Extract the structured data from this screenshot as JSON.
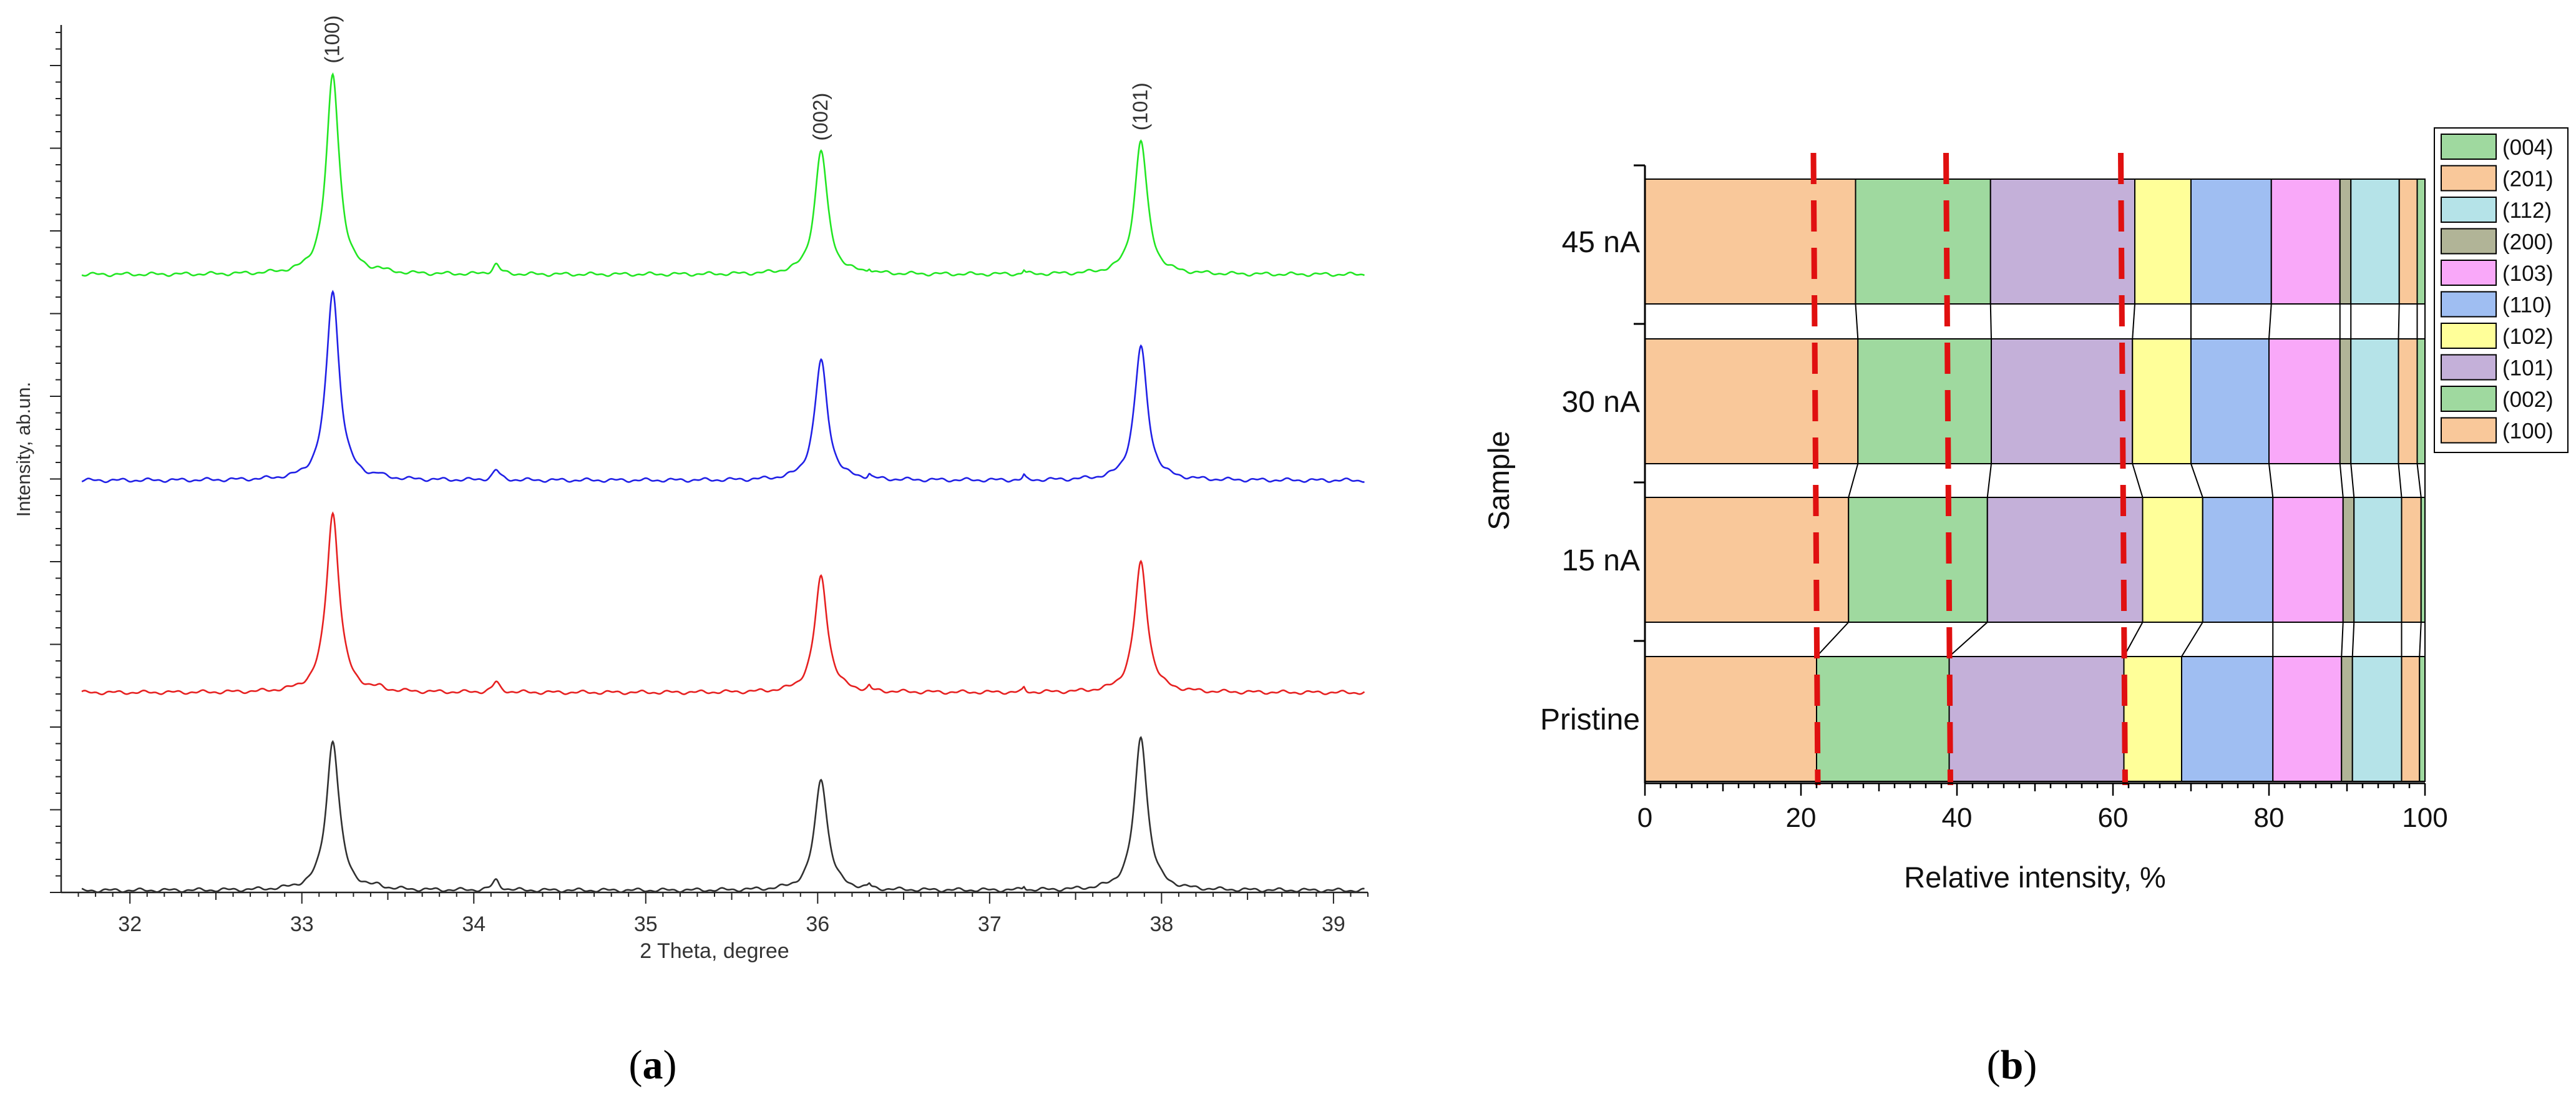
{
  "chart_data": [
    {
      "type": "line",
      "panel": "(a)",
      "xlabel": "2 Theta, degree",
      "ylabel": "Intensity, ab.un.",
      "xlim": [
        31.6,
        39.2
      ],
      "xticks": [
        32,
        33,
        34,
        35,
        36,
        37,
        38,
        39
      ],
      "peak_labels": [
        {
          "label": "(100)",
          "x": 33.18
        },
        {
          "label": "(002)",
          "x": 36.02
        },
        {
          "label": "(101)",
          "x": 37.88
        }
      ],
      "series": [
        {
          "name": "45 nA",
          "color": "#22e622",
          "offset": 3,
          "heights": [
            1.0,
            0.62,
            0.67
          ]
        },
        {
          "name": "30 nA",
          "color": "#2020e6",
          "offset": 2,
          "heights": [
            0.95,
            0.6,
            0.67
          ]
        },
        {
          "name": "15 nA",
          "color": "#e62020",
          "offset": 1,
          "heights": [
            0.9,
            0.58,
            0.65
          ]
        },
        {
          "name": "Pristine",
          "color": "#303030",
          "offset": 0,
          "heights": [
            0.75,
            0.56,
            0.77
          ]
        }
      ]
    },
    {
      "type": "bar",
      "panel": "(b)",
      "stacked": true,
      "orientation": "horizontal",
      "xlabel": "Relative intensity, %",
      "ylabel": "Sample",
      "xlim": [
        0,
        100
      ],
      "xticks": [
        0,
        20,
        40,
        60,
        80,
        100
      ],
      "categories": [
        "45 nA",
        "30 nA",
        "15 nA",
        "Pristine"
      ],
      "series": [
        {
          "name": "(100)",
          "color": "#f9c89a",
          "values": [
            27.0,
            27.3,
            26.1,
            22.0
          ]
        },
        {
          "name": "(002)",
          "color": "#9fd99f",
          "values": [
            17.3,
            17.1,
            17.8,
            17.0
          ]
        },
        {
          "name": "(101)",
          "color": "#c4b0d9",
          "values": [
            18.5,
            18.1,
            19.9,
            22.4
          ]
        },
        {
          "name": "(102)",
          "color": "#ffff99",
          "values": [
            7.2,
            7.5,
            7.7,
            7.4
          ]
        },
        {
          "name": "(110)",
          "color": "#9fbef2",
          "values": [
            10.3,
            10.0,
            9.0,
            11.7
          ]
        },
        {
          "name": "(103)",
          "color": "#f9a8f9",
          "values": [
            8.8,
            9.1,
            9.0,
            8.8
          ]
        },
        {
          "name": "(200)",
          "color": "#b1b497",
          "values": [
            1.4,
            1.4,
            1.4,
            1.4
          ]
        },
        {
          "name": "(112)",
          "color": "#b5e3e8",
          "values": [
            6.2,
            6.1,
            6.1,
            6.3
          ]
        },
        {
          "name": "(201)",
          "color": "#f9c89a",
          "values": [
            2.3,
            2.4,
            2.5,
            2.3
          ]
        },
        {
          "name": "(004)",
          "color": "#9fd99f",
          "values": [
            1.0,
            1.0,
            0.5,
            0.7
          ]
        }
      ],
      "legend_order": [
        "(004)",
        "(201)",
        "(112)",
        "(200)",
        "(103)",
        "(110)",
        "(102)",
        "(101)",
        "(002)",
        "(100)"
      ],
      "reference_lines": [
        22.0,
        39.0,
        61.4
      ],
      "reference_color": "#e01010"
    }
  ],
  "captions": {
    "a": "a",
    "b": "b"
  },
  "colors": {
    "axis": "#000000",
    "reference": "#e01010"
  }
}
